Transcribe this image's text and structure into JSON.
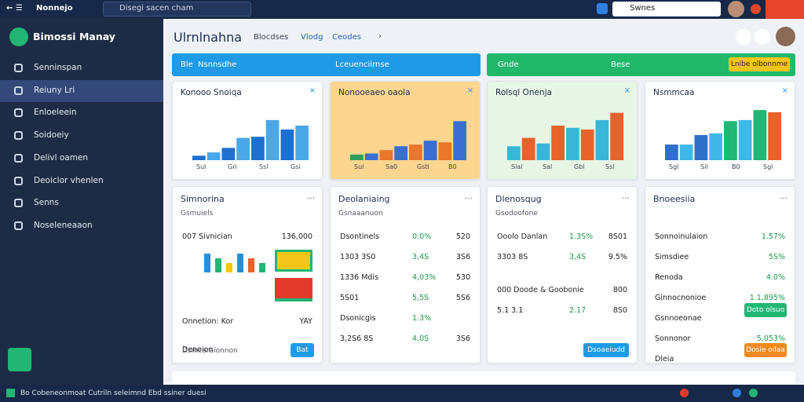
{
  "topbar": {
    "brand": "Nonnejo",
    "search": "Disegi sacen cham",
    "search_right": "Swnes"
  },
  "sidebar": {
    "title": "Bimossi Manay",
    "items": [
      "Senninspan",
      "Reiuny Lri",
      "Enloeleein",
      "Soidoeiy",
      "Delivl oamen",
      "Deoiclor vhenlen",
      "Senns",
      "Noseleneaaon"
    ]
  },
  "header": {
    "title": "Ulrnlnahna",
    "tabs": [
      "Blocdses",
      "Vlodg",
      "Ceodes"
    ]
  },
  "banners": [
    {
      "label": "Ble",
      "text": "Nsnnsdhe",
      "right": "Lceuenciirnse"
    },
    {
      "label": "Gnde",
      "right": "Bese",
      "button": "Lnibe olbonnme"
    }
  ],
  "cards_top": [
    {
      "title": "Konooo Snoiqa",
      "bg": "#ffffff",
      "values": [
        8,
        14,
        22,
        40,
        42,
        72,
        55,
        62
      ],
      "colors": [
        "#1e6fd0",
        "#4aa8e8",
        "#1e6fd0",
        "#4aa8e8",
        "#1e6fd0",
        "#4aa8e8",
        "#1e6fd0",
        "#4aa8e8"
      ],
      "ylim": [
        0,
        100
      ],
      "x_labels": [
        "Sul",
        "Gri",
        "Ssl",
        "Gsi"
      ]
    },
    {
      "title": "Nonooeaeo oaola",
      "bg": "#fcd58f",
      "values": [
        10,
        12,
        18,
        25,
        28,
        35,
        32,
        70
      ],
      "colors": [
        "#2e9c5a",
        "#3a6fd1",
        "#e8762b",
        "#3a6fd1",
        "#e8762b",
        "#3a6fd1",
        "#e8762b",
        "#3a6fd1"
      ],
      "ylim": [
        0,
        100
      ],
      "x_labels": [
        "Sul",
        "Sa0",
        "Gstl",
        "B0"
      ]
    },
    {
      "title": "Rolsql Onenja",
      "bg": "#e7f6e4",
      "values": [
        25,
        40,
        30,
        62,
        58,
        55,
        72,
        85
      ],
      "colors": [
        "#38b6d8",
        "#e8622b",
        "#38b6d8",
        "#e8622b",
        "#38b6d8",
        "#e8622b",
        "#38b6d8",
        "#e8622b"
      ],
      "ylim": [
        0,
        100
      ],
      "x_labels": [
        "Sial",
        "Sal",
        "Gbl",
        "Ssl"
      ]
    },
    {
      "title": "Nsmmcaa",
      "bg": "#ffffff",
      "values": [
        28,
        28,
        45,
        48,
        70,
        72,
        90,
        86
      ],
      "colors": [
        "#2f6fc9",
        "#3fb8e8",
        "#2f6fc9",
        "#3fb8e8",
        "#22b573",
        "#3fb8e8",
        "#22b573",
        "#e8622b"
      ],
      "ylim": [
        0,
        100
      ],
      "x_labels": [
        "Sgl",
        "Sil",
        "B0",
        "Sgl"
      ]
    }
  ],
  "cards": [
    {
      "title": "Simnorina",
      "sub": "Gsmuiels",
      "rows": [
        [
          "007 Sivnician",
          "",
          "136,000"
        ],
        [
          "",
          "",
          ""
        ],
        [
          "",
          "",
          ""
        ],
        [
          "Onnetion: Kor",
          "",
          "YAY"
        ],
        [
          "Denoion",
          "",
          ""
        ]
      ],
      "button": "Bat",
      "foot": "Dsmcaraionnon"
    },
    {
      "title": "Deolaniaing",
      "sub": "Gsnaaanuon",
      "rows": [
        [
          "Dsontinels",
          "0.0%",
          "520"
        ],
        [
          "1303  3S0",
          "3,4S",
          "3S6"
        ],
        [
          "1336  Mdis",
          "4,03%",
          "530"
        ],
        [
          "5S01",
          "5,5S",
          "5S6"
        ],
        [
          "Dsonicgis",
          "1.3%",
          ""
        ],
        [
          "3,2S6  8S",
          "4,0S",
          "3S6"
        ]
      ]
    },
    {
      "title": "Dlenosqug",
      "sub": "Gsodoofone",
      "rows": [
        [
          "Ooolo Danlan",
          "1.3S%",
          "8S01"
        ],
        [
          "3303  8S",
          "3,4S",
          "9.5%"
        ],
        [
          "000  Doode & Goobonie",
          "",
          "800"
        ],
        [
          "5.1  3.1",
          "2.17",
          "8S0"
        ]
      ],
      "button": "Dsoaeiudd"
    },
    {
      "title": "Bnoeesiia",
      "sub": "",
      "rows": [
        [
          "Sonnoinulaion",
          "",
          "1.57%"
        ],
        [
          "Simsdiee",
          "",
          "5S%"
        ],
        [
          "Renoda",
          "",
          "4.0%"
        ],
        [
          "Ginnocnonioe",
          "",
          "1.1,895%"
        ],
        [
          "Gsnnoeonae",
          "",
          ""
        ],
        [
          "Sonnonor",
          "",
          "5,053%"
        ],
        [
          "Dleia",
          "",
          ""
        ]
      ],
      "button": "Doto olsuo",
      "button2": "Dosie oilaa"
    }
  ],
  "footer": {
    "text": "Bo Cobeneonmoat Cutriln seleimnd Ebd ssiner duesi"
  }
}
